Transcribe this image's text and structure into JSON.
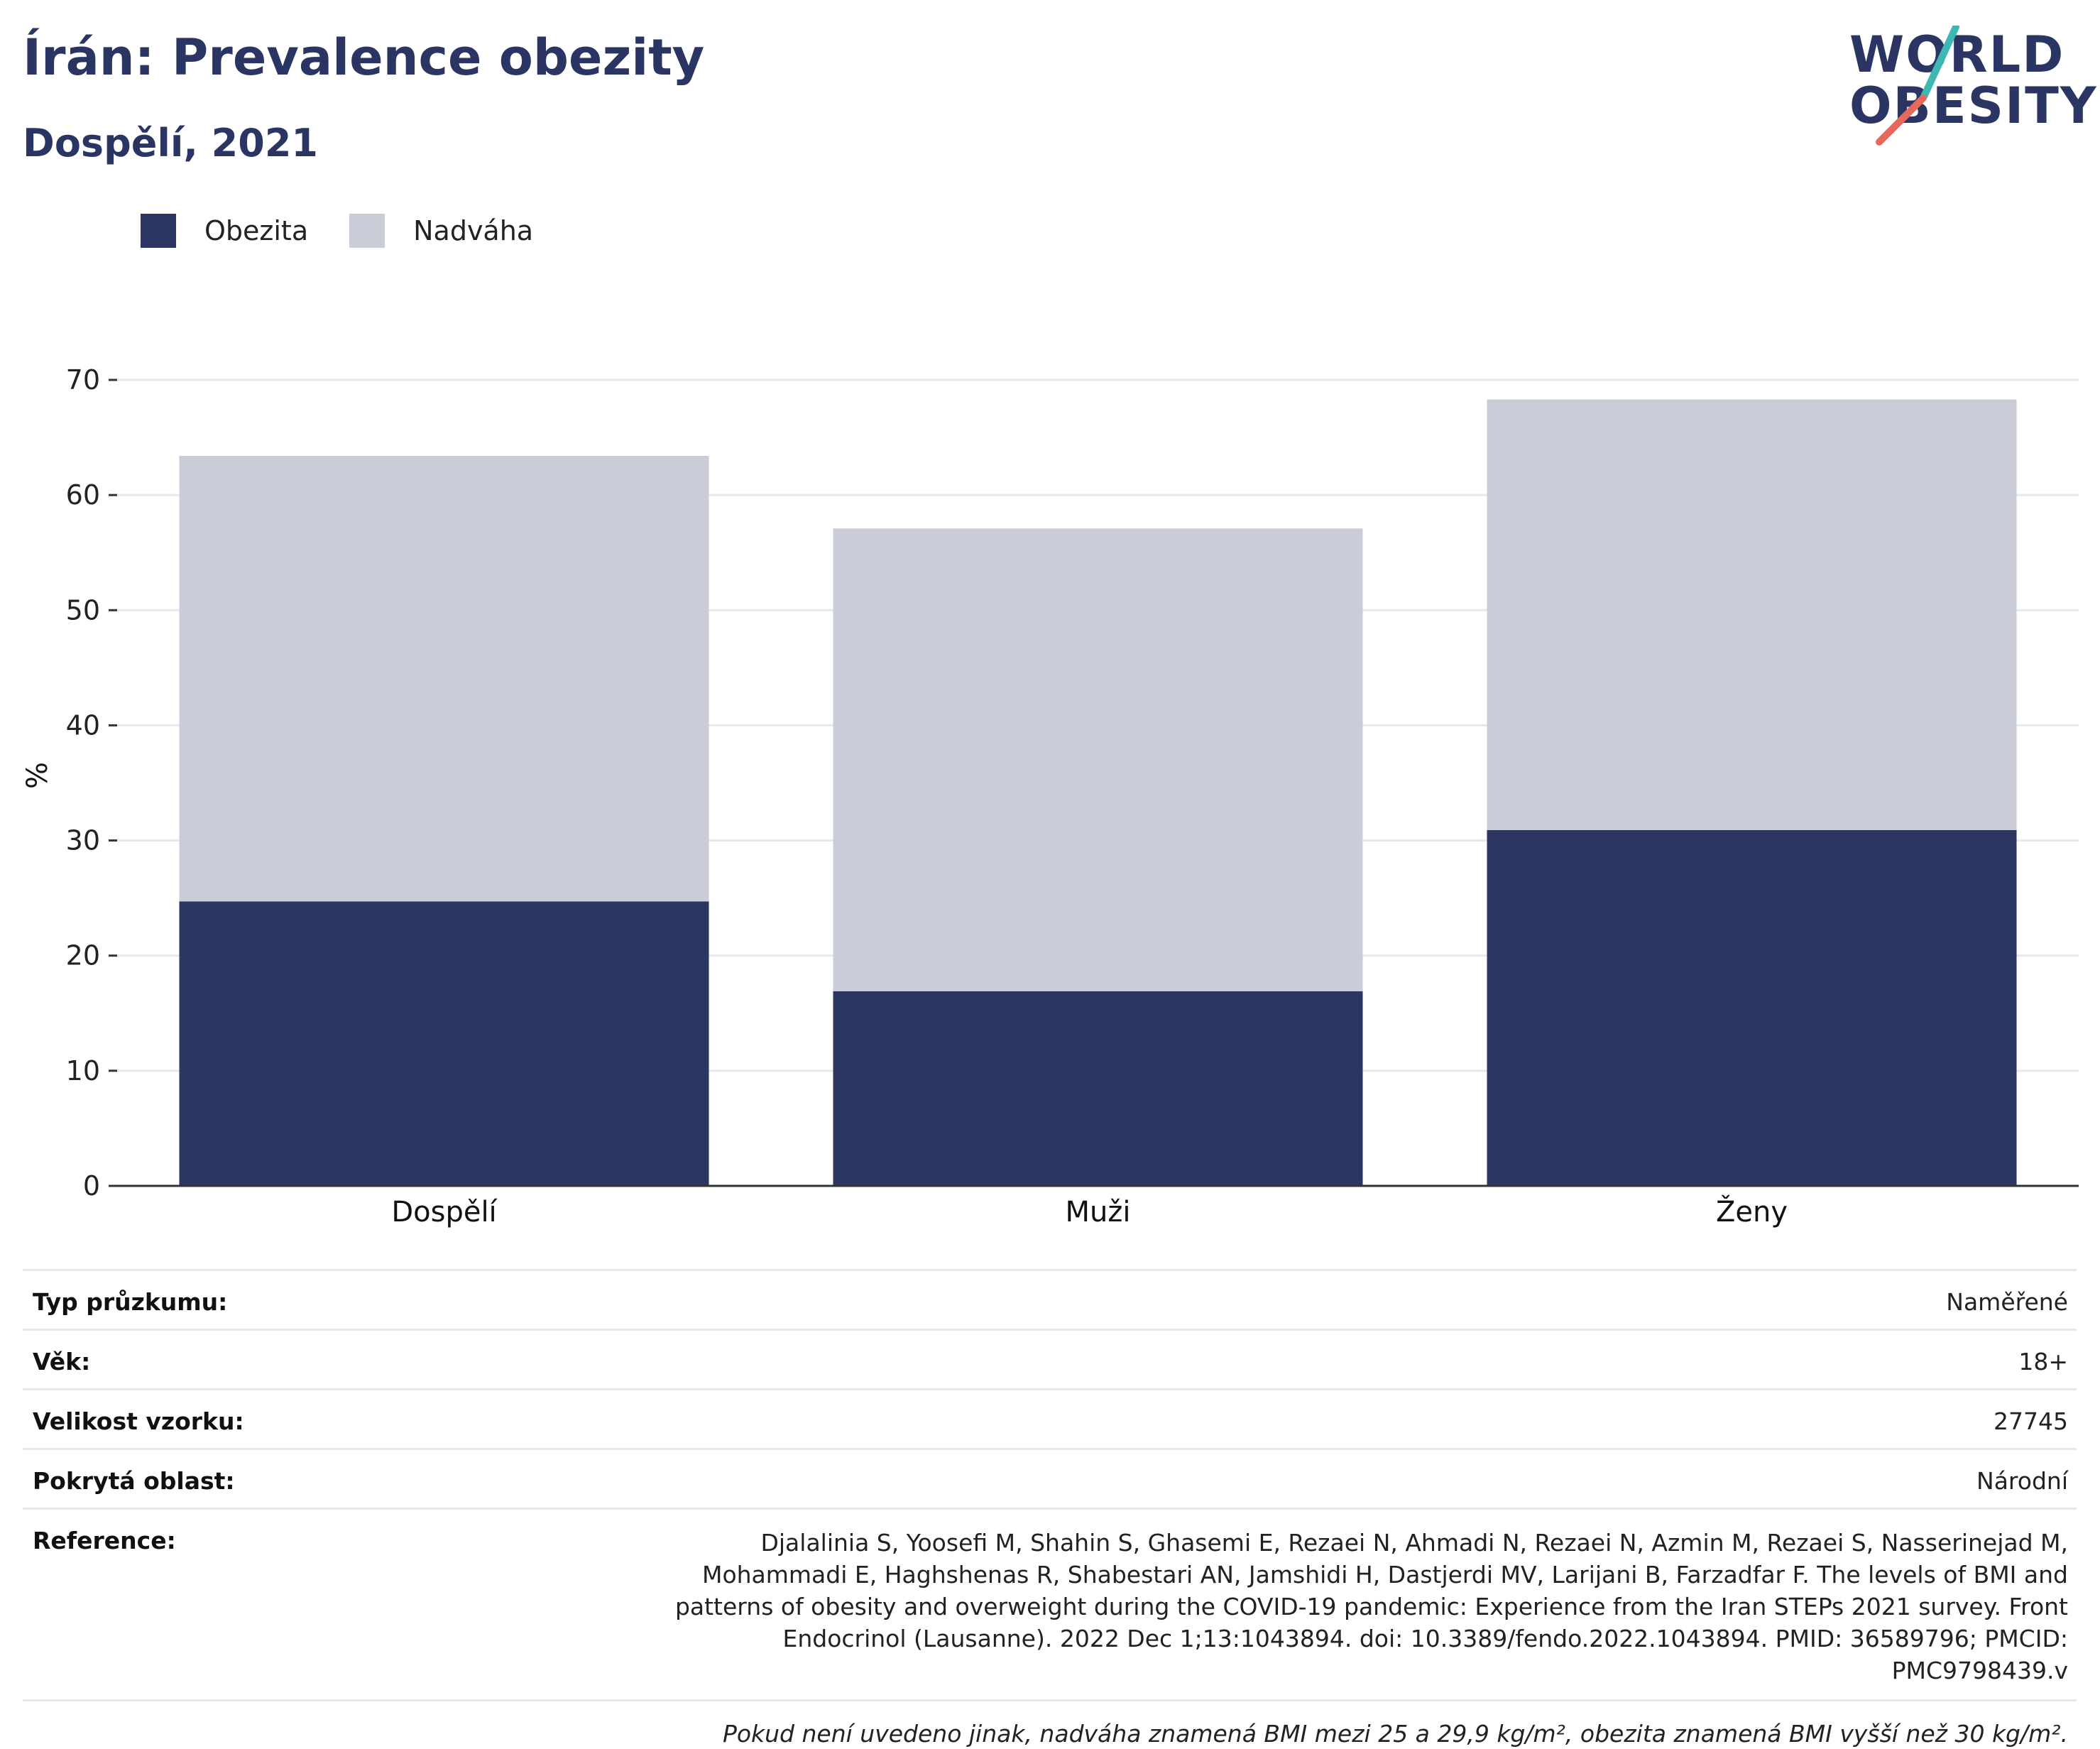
{
  "header": {
    "title": "Írán: Prevalence obezity",
    "subtitle": "Dospělí, 2021"
  },
  "logo": {
    "line1": "WORLD",
    "line2": "OBESITY",
    "accent_teal": "#3fb8b4",
    "accent_coral": "#e8685a"
  },
  "colors": {
    "obesity": "#2b3663",
    "overweight": "#cacdd8",
    "brand": "#2b3563"
  },
  "chart_data": {
    "type": "bar",
    "stacked": true,
    "categories": [
      "Dospělí",
      "Muži",
      "Ženy"
    ],
    "series": [
      {
        "name": "Obezita",
        "values": [
          24.7,
          16.9,
          30.9
        ]
      },
      {
        "name": "Nadváha",
        "values": [
          38.7,
          40.2,
          37.4
        ]
      }
    ],
    "ylabel": "%",
    "ylim": [
      0,
      70
    ],
    "yticks": [
      0,
      10,
      20,
      30,
      40,
      50,
      60,
      70
    ],
    "grid": true,
    "legend_position": "top-left"
  },
  "info": {
    "rows": [
      {
        "label": "Typ průzkumu:",
        "value": "Naměřené"
      },
      {
        "label": "Věk:",
        "value": "18+"
      },
      {
        "label": "Velikost vzorku:",
        "value": "27745"
      },
      {
        "label": "Pokrytá oblast:",
        "value": "Národní"
      }
    ],
    "reference_label": "Reference:",
    "reference_value": "Djalalinia S, Yoosefi M, Shahin S, Ghasemi E, Rezaei N, Ahmadi N, Rezaei N, Azmin M, Rezaei S, Nasserinejad M, Mohammadi E, Haghshenas R, Shabestari AN, Jamshidi H, Dastjerdi MV, Larijani B, Farzadfar F. The levels of BMI and patterns of obesity and overweight during the COVID-19 pandemic: Experience from the Iran STEPs 2021 survey. Front Endocrinol (Lausanne). 2022 Dec 1;13:1043894. doi: 10.3389/fendo.2022.1043894. PMID: 36589796; PMCID: PMC9798439.v",
    "note": "Pokud není uvedeno jinak, nadváha znamená BMI mezi 25 a 29,9 kg/m², obezita znamená BMI vyšší než 30 kg/m²."
  }
}
